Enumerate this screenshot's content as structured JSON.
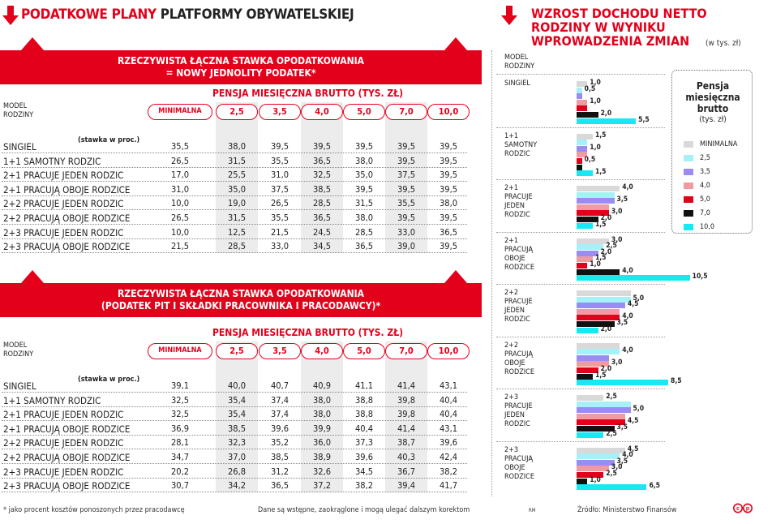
{
  "left": {
    "title_red": "PODATKOWE PLANY",
    "title_black": "PLATFORMY OBYWATELSKIEJ",
    "footnote": "* jako procent kosztów ponoszonych przez pracodawcę",
    "note": "Dane są wstępne, zaokrąglone i mogą ulegać dalszym korektom",
    "initials": "RM"
  },
  "table1": {
    "banner_line1": "RZECZYWISTA ŁĄCZNA STAWKA OPODATKOWANIA",
    "banner_line2": "= NOWY JEDNOLITY PODATEK*",
    "pensja": "PENSJA MIESIĘCZNA BRUTTO (TYS. ZŁ)",
    "model_line1": "MODEL",
    "model_line2": "RODZINY",
    "stawka": "(stawka w proc.)",
    "columns": [
      "MINIMALNA",
      "2,5",
      "3,5",
      "4,0",
      "5,0",
      "7,0",
      "10,0"
    ],
    "rows": [
      {
        "label": "SINGIEL",
        "values": [
          "35,5",
          "38,0",
          "39,5",
          "39,5",
          "39,5",
          "39,5",
          "39,5"
        ]
      },
      {
        "label": "1+1 SAMOTNY RODZIC",
        "values": [
          "26,5",
          "31,5",
          "35,5",
          "36,5",
          "38,0",
          "39,5",
          "39,5"
        ]
      },
      {
        "label": "2+1 PRACUJE JEDEN RODZIC",
        "values": [
          "17,0",
          "25,5",
          "31,0",
          "32,5",
          "35,0",
          "37,5",
          "39,5"
        ]
      },
      {
        "label": "2+1 PRACUJĄ OBOJE RODZICE",
        "values": [
          "31,0",
          "35,0",
          "37,5",
          "38,5",
          "39,5",
          "39,5",
          "39,5"
        ]
      },
      {
        "label": "2+2 PRACUJE JEDEN RODZIC",
        "values": [
          "10,0",
          "19,0",
          "26,5",
          "28,5",
          "31,5",
          "35,5",
          "38,0"
        ]
      },
      {
        "label": "2+2 PRACUJĄ OBOJE RODZICE",
        "values": [
          "26,5",
          "31,5",
          "35,5",
          "36,5",
          "38,0",
          "39,5",
          "39,5"
        ]
      },
      {
        "label": "2+3 PRACUJE JEDEN RODZIC",
        "values": [
          "10,0",
          "12,5",
          "21,5",
          "24,5",
          "28,5",
          "33,0",
          "36,5"
        ]
      },
      {
        "label": "2+3 PRACUJĄ OBOJE RODZICE",
        "values": [
          "21,5",
          "28,5",
          "33,0",
          "34,5",
          "36,5",
          "39,0",
          "39,5"
        ]
      }
    ]
  },
  "table2": {
    "banner_line1": "RZECZYWISTA ŁĄCZNA STAWKA OPODATKOWANIA",
    "banner_line2": "(PODATEK PIT I SKŁADKI PRACOWNIKA I PRACODAWCY)*",
    "pensja": "PENSJA MIESIĘCZNA BRUTTO (TYS. ZŁ)",
    "model_line1": "MODEL",
    "model_line2": "RODZINY",
    "stawka": "(stawka w proc.)",
    "columns": [
      "MINIMALNA",
      "2,5",
      "3,5",
      "4,0",
      "5,0",
      "7,0",
      "10,0"
    ],
    "rows": [
      {
        "label": "SINGIEL",
        "values": [
          "39,1",
          "40,0",
          "40,7",
          "40,9",
          "41,1",
          "41,4",
          "43,1"
        ]
      },
      {
        "label": "1+1 SAMOTNY RODZIC",
        "values": [
          "32,5",
          "35,4",
          "37,4",
          "38,0",
          "38,8",
          "39,8",
          "40,4"
        ]
      },
      {
        "label": "2+1 PRACUJE JEDEN RODZIC",
        "values": [
          "32,5",
          "35,4",
          "37,4",
          "38,0",
          "38,8",
          "39,8",
          "40,4"
        ]
      },
      {
        "label": "2+1 PRACUJĄ OBOJE RODZICE",
        "values": [
          "36,9",
          "38,5",
          "39,6",
          "39,9",
          "40,4",
          "41,4",
          "43,1"
        ]
      },
      {
        "label": "2+2 PRACUJE JEDEN RODZIC",
        "values": [
          "28,1",
          "32,3",
          "35,2",
          "36,0",
          "37,3",
          "38,7",
          "39,6"
        ]
      },
      {
        "label": "2+2 PRACUJĄ OBOJE RODZICE",
        "values": [
          "34,7",
          "37,0",
          "38,5",
          "38,9",
          "39,6",
          "40,3",
          "42,4"
        ]
      },
      {
        "label": "2+3 PRACUJE JEDEN RODZIC",
        "values": [
          "20,2",
          "26,8",
          "31,2",
          "32,6",
          "34,5",
          "36,7",
          "38,2"
        ]
      },
      {
        "label": "2+3 PRACUJĄ OBOJE RODZICE",
        "values": [
          "30,7",
          "34,2",
          "36,5",
          "37,2",
          "38,2",
          "39,4",
          "41,7"
        ]
      }
    ]
  },
  "right": {
    "title_lines": [
      "WZROST DOCHODU NETTO",
      "RODZINY W WYNIKU",
      "WPROWADZENIA ZMIAN"
    ],
    "unit": "(w tys. zł)",
    "model_line1": "MODEL",
    "model_line2": "RODZINY",
    "source": "Źródło: Ministerstwo Finansów"
  },
  "chart_data": {
    "type": "bar",
    "orientation": "horizontal",
    "title": "WZROST DOCHODU NETTO RODZINY W WYNIKU WPROWADZENIA ZMIAN",
    "unit": "(w tys. zł)",
    "legend_title": [
      "Pensja",
      "miesięczna",
      "brutto",
      "(tys. zł)"
    ],
    "series_names": [
      "MINIMALNA",
      "2,5",
      "3,5",
      "4,0",
      "5,0",
      "7,0",
      "10,0"
    ],
    "colors": [
      "#d9d9d9",
      "#a6f0f7",
      "#9a8cf0",
      "#f19aa2",
      "#e3001b",
      "#111111",
      "#16e8f4"
    ],
    "groups": [
      {
        "label": [
          "SINGIEL"
        ],
        "values": [
          1.0,
          0.5,
          0.5,
          1.0,
          1.0,
          2.0,
          5.5
        ],
        "labels": [
          "1,0",
          "0,5",
          "",
          "1,0",
          "",
          "2,0",
          "5,5"
        ]
      },
      {
        "label": [
          "1+1",
          "SAMOTNY",
          "RODZIC"
        ],
        "values": [
          1.5,
          1.0,
          1.0,
          1.0,
          0.5,
          0.5,
          1.5
        ],
        "labels": [
          "1,5",
          "",
          "1,0",
          "",
          "0,5",
          "",
          "1,5"
        ]
      },
      {
        "label": [
          "2+1",
          "PRACUJE",
          "JEDEN",
          "RODZIC"
        ],
        "values": [
          4.0,
          3.5,
          3.5,
          3.0,
          3.0,
          2.0,
          1.5
        ],
        "labels": [
          "4,0",
          "",
          "3,5",
          "",
          "3,0",
          "2,0",
          "1,5"
        ]
      },
      {
        "label": [
          "2+1",
          "PRACUJĄ",
          "OBOJE",
          "RODZICE"
        ],
        "values": [
          3.0,
          2.5,
          2.0,
          1.5,
          1.0,
          4.0,
          10.5
        ],
        "labels": [
          "3,0",
          "2,5",
          "2,0",
          "1,5",
          "1,0",
          "4,0",
          "10,5"
        ]
      },
      {
        "label": [
          "2+2",
          "PRACUJE",
          "JEDEN",
          "RODZIC"
        ],
        "values": [
          5.0,
          5.0,
          4.5,
          4.0,
          4.0,
          3.5,
          2.0
        ],
        "labels": [
          "",
          "5,0",
          "4,5",
          "",
          "4,0",
          "3,5",
          "2,0"
        ]
      },
      {
        "label": [
          "2+2",
          "PRACUJĄ",
          "OBOJE",
          "RODZICE"
        ],
        "values": [
          4.0,
          4.0,
          3.0,
          3.0,
          2.0,
          1.5,
          8.5
        ],
        "labels": [
          "",
          "4,0",
          "",
          "3,0",
          "2,0",
          "1,5",
          "8,5"
        ]
      },
      {
        "label": [
          "2+3",
          "PRACUJE",
          "JEDEN",
          "RODZIC"
        ],
        "values": [
          2.5,
          5.0,
          5.0,
          4.5,
          4.5,
          3.5,
          2.5
        ],
        "labels": [
          "2,5",
          "",
          "5,0",
          "",
          "4,5",
          "3,5",
          "2,5"
        ]
      },
      {
        "label": [
          "2+3",
          "PRACUJĄ",
          "OBOJE",
          "RODZICE"
        ],
        "values": [
          4.5,
          4.0,
          3.5,
          3.0,
          2.5,
          1.0,
          6.5
        ],
        "labels": [
          "4,5",
          "4,0",
          "3,5",
          "3,0",
          "2,5",
          "1,0",
          "6,5"
        ]
      }
    ]
  }
}
